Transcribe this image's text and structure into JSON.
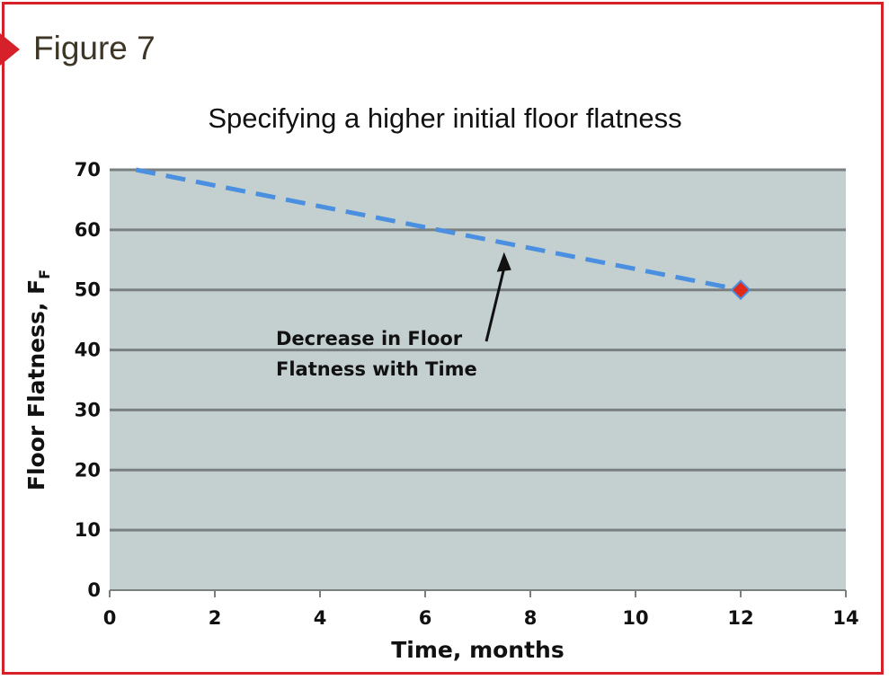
{
  "figure_label": "Figure 7",
  "colors": {
    "frame": "#d6212a",
    "plot_bg": "#c4d0d0",
    "grid": "#7a7f80",
    "line": "#4a8fe0",
    "marker": "#e02a1c"
  },
  "chart_data": {
    "type": "line",
    "title": "Specifying a higher initial floor flatness",
    "xlabel": "Time, months",
    "ylabel": "Floor Flatness, F",
    "ylabel_subscript": "F",
    "xlim": [
      0,
      14
    ],
    "ylim": [
      0,
      70
    ],
    "x_ticks": [
      "0",
      "2",
      "4",
      "6",
      "8",
      "10",
      "12",
      "14"
    ],
    "y_ticks": [
      "0",
      "10",
      "20",
      "30",
      "40",
      "50",
      "60",
      "70"
    ],
    "grid": "horizontal",
    "series": [
      {
        "x": [
          0.5,
          12
        ],
        "y": [
          70,
          50
        ],
        "style": "dashed"
      }
    ],
    "markers": [
      {
        "x": 12,
        "y": 50,
        "shape": "diamond"
      }
    ],
    "annotation": {
      "lines": [
        "Decrease in Floor",
        "Flatness with Time"
      ],
      "arrow_to": {
        "x": 7.5,
        "y": 57.5
      }
    }
  }
}
